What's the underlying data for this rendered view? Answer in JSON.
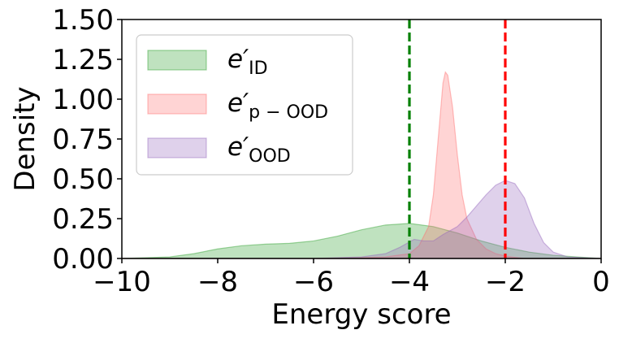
{
  "chart_data": {
    "type": "area",
    "xlabel": "Energy score",
    "ylabel": "Density",
    "xlim": [
      -10,
      0
    ],
    "ylim": [
      0,
      1.5
    ],
    "xticks": [
      -10,
      -8,
      -6,
      -4,
      -2,
      0
    ],
    "xtick_labels": [
      "−10",
      "−8",
      "−6",
      "−4",
      "−2",
      "0"
    ],
    "yticks": [
      0,
      0.25,
      0.5,
      0.75,
      1.0,
      1.25,
      1.5
    ],
    "ytick_labels": [
      "0.00",
      "0.25",
      "0.50",
      "0.75",
      "1.00",
      "1.25",
      "1.50"
    ],
    "grid": false,
    "legend_position": "top-left",
    "series": [
      {
        "name": "e′",
        "subscript": "ID",
        "color": "#2ca02c",
        "x": [
          -10,
          -9,
          -8.5,
          -8,
          -7.5,
          -7,
          -6.5,
          -6,
          -5.5,
          -5,
          -4.5,
          -4,
          -3.5,
          -3,
          -2.5,
          -2,
          -1.5,
          -1,
          -0.5,
          0
        ],
        "y": [
          0.0,
          0.01,
          0.03,
          0.06,
          0.08,
          0.09,
          0.095,
          0.11,
          0.14,
          0.18,
          0.21,
          0.22,
          0.2,
          0.16,
          0.11,
          0.07,
          0.04,
          0.02,
          0.01,
          0.0
        ]
      },
      {
        "name": "e′",
        "subscript": "p − OOD",
        "color": "#ff6f6f",
        "x": [
          -10,
          -6,
          -5,
          -4.5,
          -4,
          -3.8,
          -3.6,
          -3.5,
          -3.4,
          -3.3,
          -3.25,
          -3.2,
          -3.1,
          -3.0,
          -2.9,
          -2.8,
          -2.6,
          -2.4,
          -2.2,
          -2.0,
          -1.6,
          0
        ],
        "y": [
          0.0,
          0.0,
          0.005,
          0.01,
          0.03,
          0.08,
          0.2,
          0.4,
          0.75,
          1.1,
          1.17,
          1.15,
          0.95,
          0.65,
          0.4,
          0.25,
          0.12,
          0.06,
          0.03,
          0.015,
          0.0,
          0.0
        ]
      },
      {
        "name": "e′",
        "subscript": "OOD",
        "color": "#9467bd",
        "x": [
          -10,
          -6,
          -5,
          -4.5,
          -4.2,
          -3.9,
          -3.7,
          -3.5,
          -3.3,
          -3.0,
          -2.8,
          -2.6,
          -2.4,
          -2.2,
          -2.0,
          -1.8,
          -1.6,
          -1.4,
          -1.2,
          -1.0,
          -0.7,
          0
        ],
        "y": [
          0.0,
          0.0,
          0.01,
          0.03,
          0.07,
          0.12,
          0.11,
          0.11,
          0.15,
          0.2,
          0.26,
          0.33,
          0.4,
          0.46,
          0.49,
          0.47,
          0.38,
          0.22,
          0.1,
          0.04,
          0.01,
          0.0
        ]
      }
    ],
    "vlines": [
      {
        "x": -4,
        "color": "#008000",
        "style": "dashed"
      },
      {
        "x": -2,
        "color": "#ff0000",
        "style": "dashed"
      }
    ]
  }
}
